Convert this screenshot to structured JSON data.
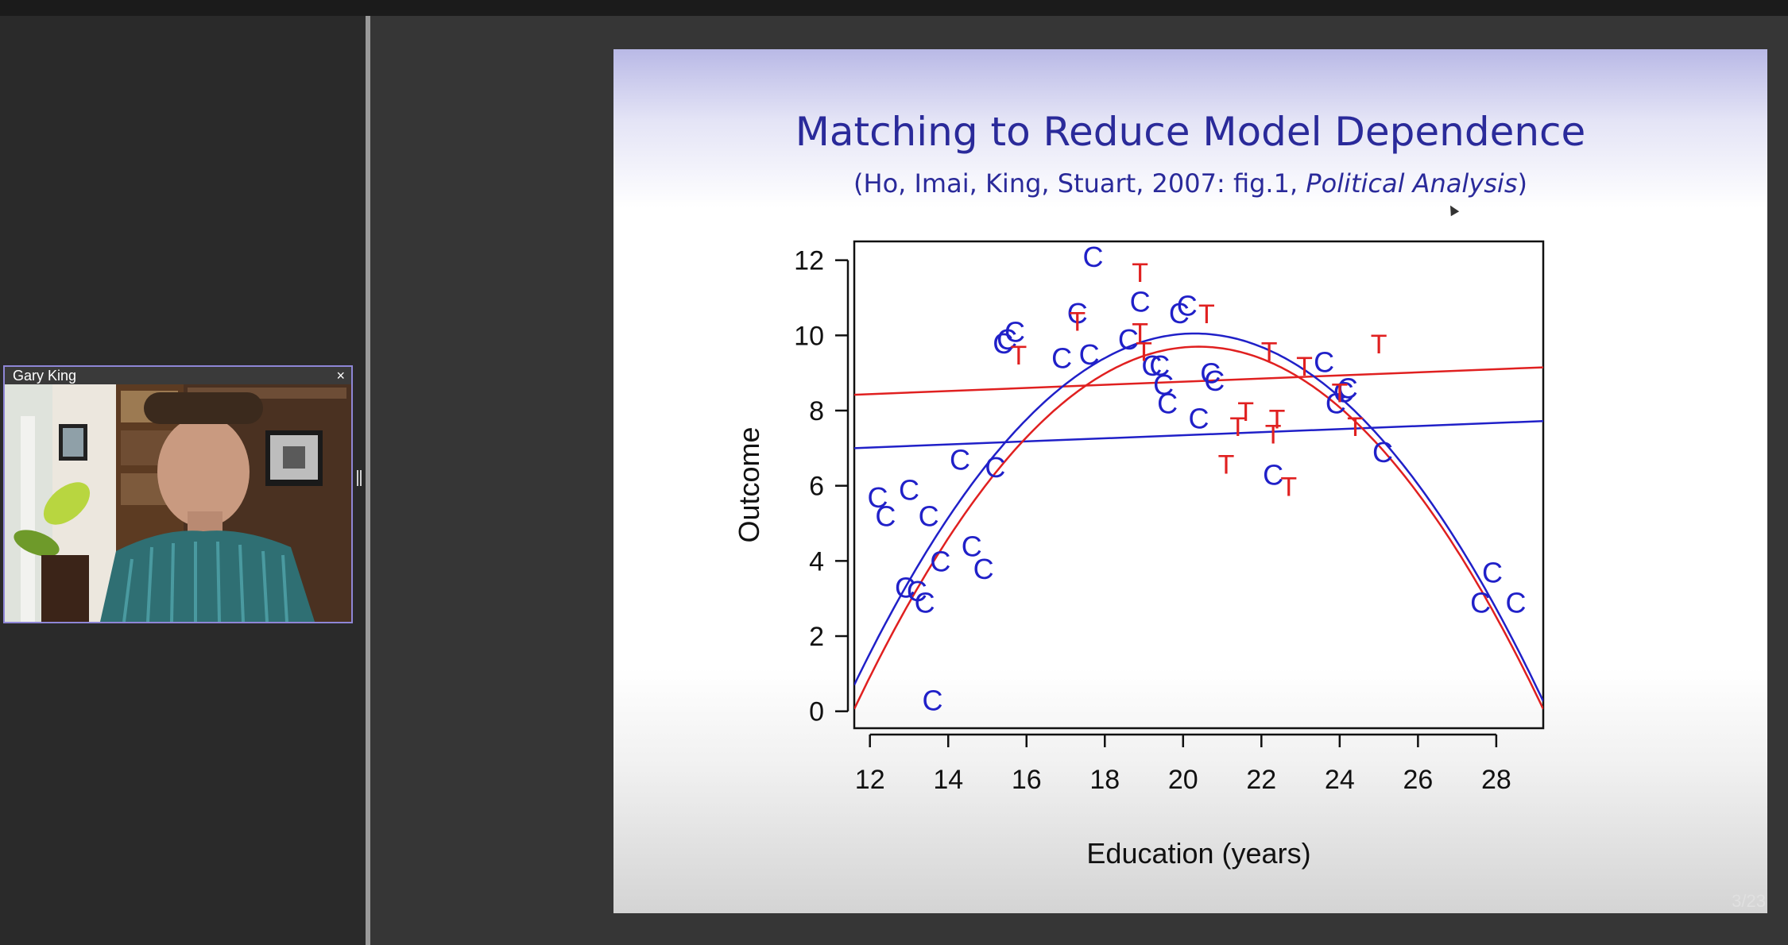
{
  "participant": {
    "name": "Gary King",
    "close_label": "×"
  },
  "slide": {
    "title": "Matching to Reduce Model Dependence",
    "subtitle_prefix": "(Ho, Imai, King, Stuart, 2007: fig.1, ",
    "subtitle_italic": "Political Analysis",
    "subtitle_suffix": ")",
    "page_counter": "3/23"
  },
  "colors": {
    "treated": "#e02020",
    "control": "#2020c8",
    "title": "#2a2a9a"
  },
  "chart_data": {
    "type": "scatter",
    "xlabel": "Education (years)",
    "ylabel": "Outcome",
    "xlim": [
      11.6,
      29.2
    ],
    "ylim": [
      -0.45,
      12.5
    ],
    "xticks": [
      12,
      14,
      16,
      18,
      20,
      22,
      24,
      26,
      28
    ],
    "yticks": [
      0,
      2,
      4,
      6,
      8,
      10,
      12
    ],
    "control_marker": "C",
    "treated_marker": "T",
    "control_points": [
      [
        12.2,
        5.7
      ],
      [
        12.4,
        5.2
      ],
      [
        13.0,
        5.9
      ],
      [
        13.5,
        5.2
      ],
      [
        12.9,
        3.3
      ],
      [
        13.2,
        3.2
      ],
      [
        13.4,
        2.9
      ],
      [
        13.8,
        4.0
      ],
      [
        14.3,
        6.7
      ],
      [
        14.6,
        4.4
      ],
      [
        14.9,
        3.8
      ],
      [
        15.2,
        6.5
      ],
      [
        13.6,
        0.3
      ],
      [
        15.4,
        9.8
      ],
      [
        15.5,
        9.9
      ],
      [
        15.7,
        10.1
      ],
      [
        16.9,
        9.4
      ],
      [
        17.3,
        10.6
      ],
      [
        17.6,
        9.5
      ],
      [
        17.7,
        12.1
      ],
      [
        18.6,
        9.9
      ],
      [
        18.9,
        10.9
      ],
      [
        19.2,
        9.2
      ],
      [
        19.4,
        9.2
      ],
      [
        19.5,
        8.7
      ],
      [
        19.6,
        8.2
      ],
      [
        19.9,
        10.6
      ],
      [
        20.1,
        10.8
      ],
      [
        20.4,
        7.8
      ],
      [
        20.7,
        9.0
      ],
      [
        20.8,
        8.8
      ],
      [
        22.3,
        6.3
      ],
      [
        23.6,
        9.3
      ],
      [
        23.9,
        8.2
      ],
      [
        24.1,
        8.5
      ],
      [
        24.2,
        8.6
      ],
      [
        25.1,
        6.9
      ],
      [
        27.6,
        2.9
      ],
      [
        27.9,
        3.7
      ],
      [
        28.5,
        2.9
      ]
    ],
    "treated_points": [
      [
        15.8,
        9.5
      ],
      [
        17.3,
        10.4
      ],
      [
        18.9,
        11.7
      ],
      [
        18.9,
        10.1
      ],
      [
        19.0,
        9.6
      ],
      [
        20.6,
        10.6
      ],
      [
        21.1,
        6.6
      ],
      [
        21.4,
        7.6
      ],
      [
        21.6,
        8.0
      ],
      [
        22.2,
        9.6
      ],
      [
        22.3,
        7.4
      ],
      [
        22.4,
        7.8
      ],
      [
        22.7,
        6.0
      ],
      [
        23.1,
        9.2
      ],
      [
        24.0,
        8.5
      ],
      [
        24.4,
        7.6
      ],
      [
        25.0,
        9.8
      ]
    ],
    "fits": [
      {
        "group": "treated",
        "kind": "linear",
        "x": [
          11.6,
          29.2
        ],
        "y": [
          8.42,
          9.15
        ]
      },
      {
        "group": "control",
        "kind": "linear",
        "x": [
          11.6,
          29.2
        ],
        "y": [
          7.0,
          7.72
        ]
      },
      {
        "group": "control",
        "kind": "quadratic",
        "vertex_x": 20.3,
        "vertex_y": 10.05,
        "a": -0.1235
      },
      {
        "group": "treated",
        "kind": "quadratic",
        "vertex_x": 20.4,
        "vertex_y": 9.7,
        "a": -0.1245
      }
    ]
  }
}
